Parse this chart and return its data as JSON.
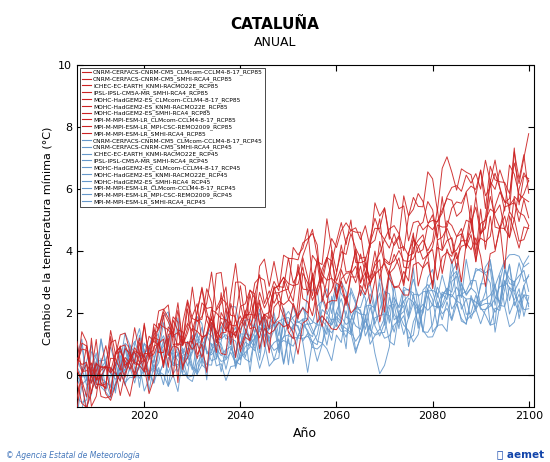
{
  "title": "CATALUÑA",
  "subtitle": "ANUAL",
  "xlabel": "Año",
  "ylabel": "Cambio de la temperatura mínima (°C)",
  "xlim": [
    2006,
    2101
  ],
  "ylim": [
    -1,
    10
  ],
  "yticks": [
    0,
    2,
    4,
    6,
    8,
    10
  ],
  "xticks": [
    2020,
    2040,
    2060,
    2080,
    2100
  ],
  "footer_left": "© Agencia Estatal de Meteorología",
  "rcp85_color": "#cc2222",
  "rcp45_color": "#6699cc",
  "rcp85_labels": [
    "CNRM-CERFACS-CNRM-CM5_CLMcom-CCLM4-8-17_RCP85",
    "CNRM-CERFACS-CNRM-CM5_SMHI-RCA4_RCP85",
    "ICHEC-EC-EARTH_KNMI-RACMO22E_RCP85",
    "IPSL-IPSL-CM5A-MR_SMHI-RCA4_RCP85",
    "MOHC-HadGEM2-ES_CLMcom-CCLM4-8-17_RCP85",
    "MOHC-HadGEM2-ES_KNMI-RACMO22E_RCP85",
    "MOHC-HadGEM2-ES_SMHI-RCA4_RCP85",
    "MPI-M-MPI-ESM-LR_CLMcom-CCLM4-8-17_RCP85",
    "MPI-M-MPI-ESM-LR_MPI-CSC-REMO2009_RCP85",
    "MPI-M-MPI-ESM-LR_SMHI-RCA4_RCP85"
  ],
  "rcp45_labels": [
    "CNRM-CERFACS-CNRM-CM5_CLMcom-CCLM4-8-17_RCP45",
    "CNRM-CERFACS-CNRM-CM5_SMHI-RCA4_RCP45",
    "ICHEC-EC-EARTH_KNMI-RACMO22E_RCP45",
    "IPSL-IPSL-CM5A-MR_SMHI-RCA4_RCP45",
    "MOHC-HadGEM2-ES_CLMcom-CCLM4-8-17_RCP45",
    "MOHC-HadGEM2-ES_KNMI-RACMO22E_RCP45",
    "MOHC-HadGEM2-ES_SMHI-RCA4_RCP45",
    "MPI-M-MPI-ESM-LR_CLMcom-CCLM4-8-17_RCP45",
    "MPI-M-MPI-ESM-LR_MPI-CSC-REMO2009_RCP45",
    "MPI-M-MPI-ESM-LR_SMHI-RCA4_RCP45"
  ],
  "n85_series": 10,
  "n45_series": 10,
  "start_year": 2006,
  "end_year": 2100,
  "rcp85_end_trends": [
    5.2,
    6.8,
    4.8,
    5.5,
    7.2,
    6.0,
    5.8,
    4.5,
    6.5,
    5.0
  ],
  "rcp45_end_trends": [
    2.5,
    3.2,
    2.8,
    2.6,
    3.5,
    3.0,
    2.9,
    2.4,
    3.3,
    2.7
  ],
  "noise_scale_85": 0.65,
  "noise_scale_45": 0.55
}
